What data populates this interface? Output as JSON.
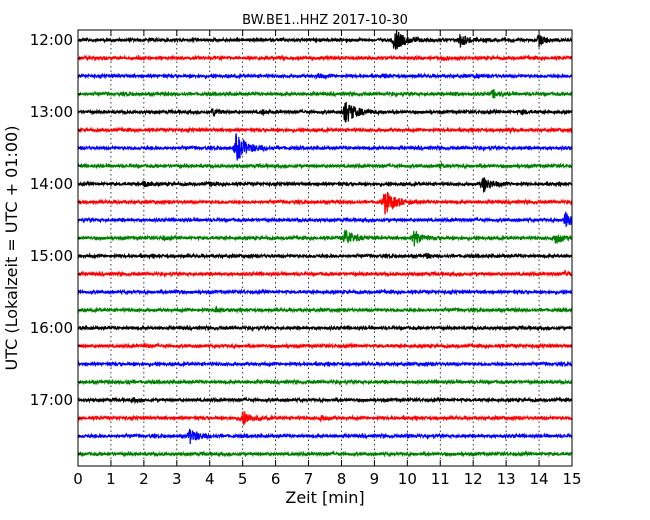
{
  "chart_data": {
    "type": "line",
    "title": "BW.BE1..HHZ 2017-10-30",
    "xlabel": "Zeit  [min]",
    "ylabel": "UTC (Lokalzeit = UTC + 01:00)",
    "xlim": [
      0,
      15
    ],
    "x_ticks": [
      "0",
      "1",
      "2",
      "3",
      "4",
      "5",
      "6",
      "7",
      "8",
      "9",
      "10",
      "11",
      "12",
      "13",
      "14",
      "15"
    ],
    "y_ticks": [
      "12:00",
      "13:00",
      "14:00",
      "15:00",
      "16:00",
      "17:00"
    ],
    "grid": "vertical dotted",
    "trace_colors": [
      "#000000",
      "#ff0000",
      "#0000ff",
      "#008000"
    ],
    "traces": [
      {
        "start": "12:00",
        "color": "#000000",
        "events": [
          [
            9.6,
            11
          ],
          [
            11.6,
            7
          ],
          [
            14.0,
            6
          ]
        ]
      },
      {
        "start": "12:15",
        "color": "#ff0000",
        "events": [
          [
            11.1,
            2
          ]
        ]
      },
      {
        "start": "12:30",
        "color": "#0000ff",
        "events": [
          [
            7.3,
            2
          ],
          [
            9.3,
            1.5
          ],
          [
            12.1,
            1.5
          ]
        ]
      },
      {
        "start": "12:45",
        "color": "#008000",
        "events": [
          [
            12.6,
            4
          ],
          [
            11.4,
            1.5
          ]
        ]
      },
      {
        "start": "13:00",
        "color": "#000000",
        "events": [
          [
            8.1,
            12
          ],
          [
            4.1,
            4
          ],
          [
            5.6,
            2
          ],
          [
            13.5,
            2
          ]
        ]
      },
      {
        "start": "13:15",
        "color": "#ff0000",
        "events": [
          [
            13.1,
            2
          ]
        ]
      },
      {
        "start": "13:30",
        "color": "#0000ff",
        "events": [
          [
            4.8,
            13
          ]
        ]
      },
      {
        "start": "13:45",
        "color": "#008000",
        "events": [
          [
            11.0,
            2
          ]
        ]
      },
      {
        "start": "14:00",
        "color": "#000000",
        "events": [
          [
            12.3,
            8
          ],
          [
            2.0,
            3
          ],
          [
            4.0,
            1.5
          ]
        ]
      },
      {
        "start": "14:15",
        "color": "#ff0000",
        "events": [
          [
            9.3,
            12
          ]
        ]
      },
      {
        "start": "14:30",
        "color": "#0000ff",
        "events": [
          [
            14.8,
            8
          ]
        ]
      },
      {
        "start": "14:45",
        "color": "#008000",
        "events": [
          [
            8.1,
            9
          ],
          [
            10.2,
            8
          ],
          [
            14.5,
            6
          ],
          [
            2.6,
            2
          ]
        ]
      },
      {
        "start": "15:00",
        "color": "#000000",
        "events": [
          [
            10.6,
            2
          ]
        ]
      },
      {
        "start": "15:15",
        "color": "#ff0000",
        "events": [
          [
            14.8,
            3
          ]
        ]
      },
      {
        "start": "15:30",
        "color": "#0000ff",
        "events": [
          [
            3.0,
            1.5
          ]
        ]
      },
      {
        "start": "15:45",
        "color": "#008000",
        "events": [
          [
            4.2,
            3
          ]
        ]
      },
      {
        "start": "16:00",
        "color": "#000000",
        "events": []
      },
      {
        "start": "16:15",
        "color": "#ff0000",
        "events": [
          [
            2.0,
            1.5
          ]
        ]
      },
      {
        "start": "16:30",
        "color": "#0000ff",
        "events": []
      },
      {
        "start": "16:45",
        "color": "#008000",
        "events": [
          [
            1.5,
            1.5
          ]
        ]
      },
      {
        "start": "17:00",
        "color": "#000000",
        "events": [
          [
            1.7,
            1.5
          ]
        ]
      },
      {
        "start": "17:15",
        "color": "#ff0000",
        "events": [
          [
            5.0,
            8
          ],
          [
            7.4,
            3
          ]
        ]
      },
      {
        "start": "17:30",
        "color": "#0000ff",
        "events": [
          [
            3.4,
            8
          ],
          [
            10.0,
            1.5
          ]
        ]
      },
      {
        "start": "17:45",
        "color": "#008000",
        "events": []
      }
    ]
  }
}
